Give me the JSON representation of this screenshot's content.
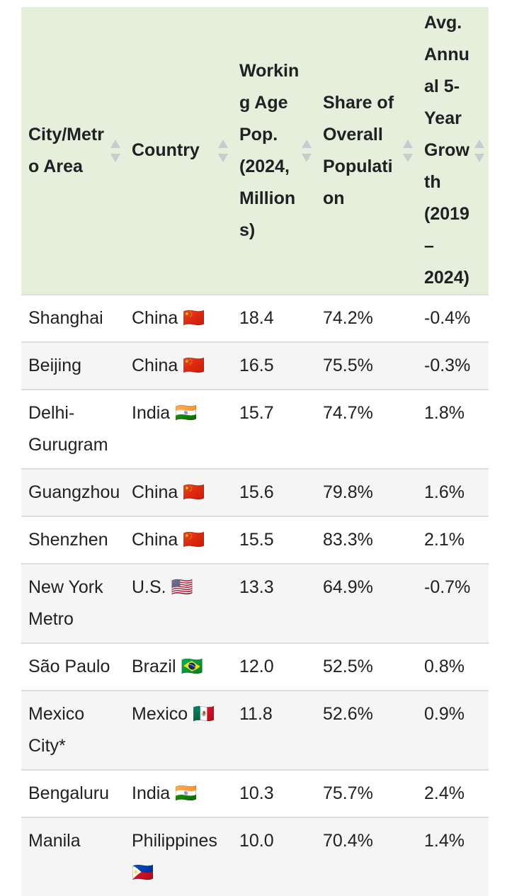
{
  "table": {
    "header": [
      "City/Metro Area",
      "Country",
      "Working Age Pop. (2024, Millions)",
      "Share of Overall Population",
      "Avg. Annual 5-Year Growth (2019–2024)"
    ],
    "rows": [
      [
        "Shanghai",
        "China 🇨🇳",
        "18.4",
        "74.2%",
        "-0.4%"
      ],
      [
        "Beijing",
        "China 🇨🇳",
        "16.5",
        "75.5%",
        "-0.3%"
      ],
      [
        "Delhi-Gurugram",
        "India 🇮🇳",
        "15.7",
        "74.7%",
        "1.8%"
      ],
      [
        "Guangzhou",
        "China 🇨🇳",
        "15.6",
        "79.8%",
        "1.6%"
      ],
      [
        "Shenzhen",
        "China 🇨🇳",
        "15.5",
        "83.3%",
        "2.1%"
      ],
      [
        "New York Metro",
        "U.S. 🇺🇸",
        "13.3",
        "64.9%",
        "-0.7%"
      ],
      [
        "São Paulo",
        "Brazil 🇧🇷",
        "12.0",
        "52.5%",
        "0.8%"
      ],
      [
        "Mexico City*",
        "Mexico 🇲🇽",
        "11.8",
        "52.6%",
        "0.9%"
      ],
      [
        "Bengaluru",
        "India 🇮🇳",
        "10.3",
        "75.7%",
        "2.4%"
      ],
      [
        "Manila",
        "Philippines 🇵🇭",
        "10.0",
        "70.4%",
        "1.4%"
      ]
    ]
  }
}
